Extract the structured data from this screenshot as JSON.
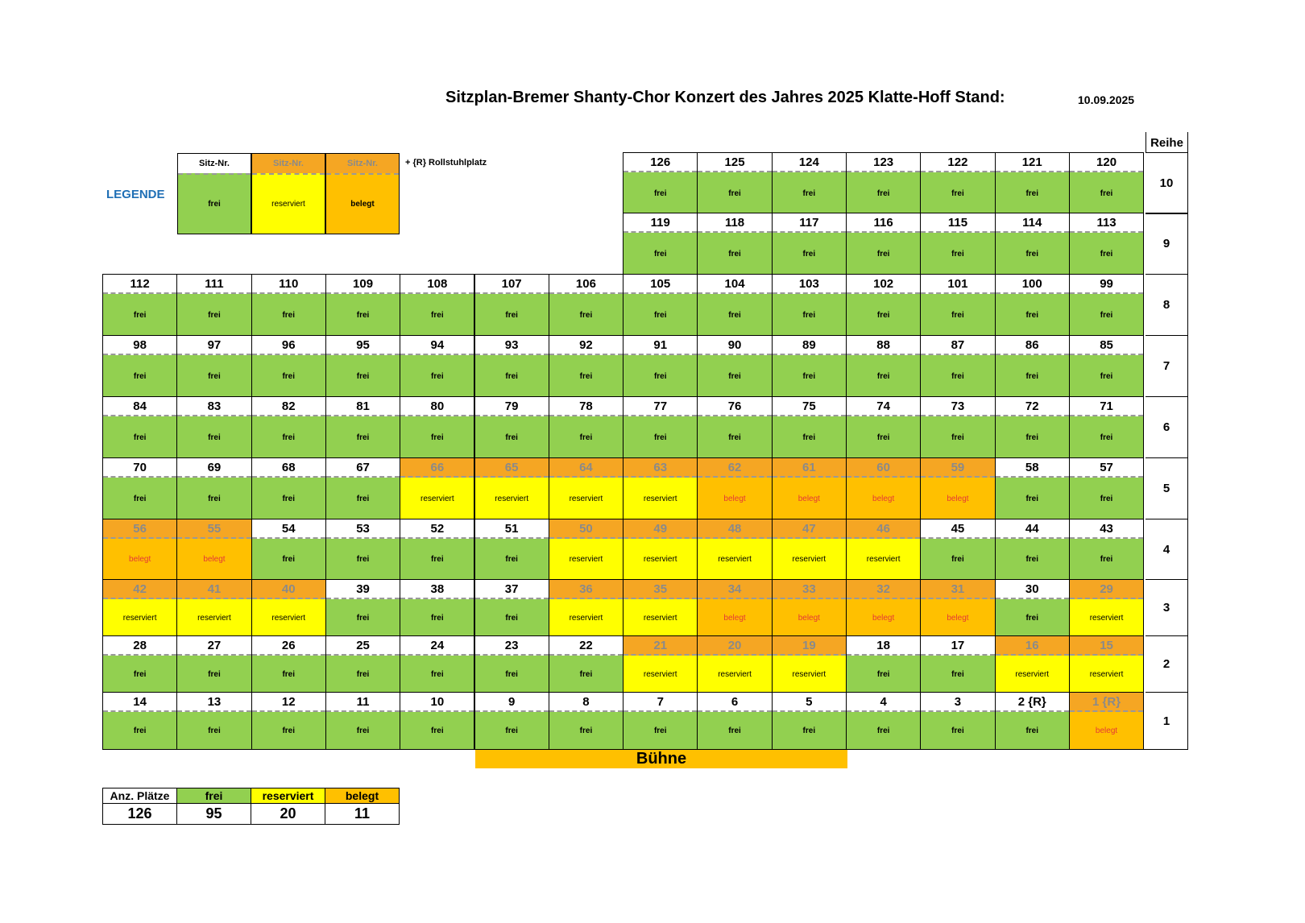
{
  "header": {
    "title": "Sitzplan-Bremer Shanty-Chor Konzert des Jahres  2025 Klatte-Hoff    Stand:",
    "date": "10.09.2025"
  },
  "legend": {
    "label": "LEGENDE",
    "items": [
      {
        "head": "Sitz-Nr.",
        "status": "frei",
        "label": "frei"
      },
      {
        "head": "Sitz-Nr.",
        "status": "reserviert",
        "label": "reserviert"
      },
      {
        "head": "Sitz-Nr.",
        "status": "belegt",
        "label": "belegt"
      }
    ],
    "note": "+ {R}   Rollstuhlplatz"
  },
  "row_header": "Reihe",
  "stage_label": "Bühne",
  "rows": [
    {
      "reihe": "10",
      "seats": [
        {
          "n": "126",
          "s": "frei"
        },
        {
          "n": "125",
          "s": "frei"
        },
        {
          "n": "124",
          "s": "frei"
        },
        {
          "n": "123",
          "s": "frei"
        },
        {
          "n": "122",
          "s": "frei"
        },
        {
          "n": "121",
          "s": "frei"
        },
        {
          "n": "120",
          "s": "frei"
        }
      ]
    },
    {
      "reihe": "9",
      "seats": [
        {
          "n": "119",
          "s": "frei"
        },
        {
          "n": "118",
          "s": "frei"
        },
        {
          "n": "117",
          "s": "frei"
        },
        {
          "n": "116",
          "s": "frei"
        },
        {
          "n": "115",
          "s": "frei"
        },
        {
          "n": "114",
          "s": "frei"
        },
        {
          "n": "113",
          "s": "frei"
        }
      ]
    },
    {
      "reihe": "8",
      "seats": [
        {
          "n": "112",
          "s": "frei"
        },
        {
          "n": "111",
          "s": "frei"
        },
        {
          "n": "110",
          "s": "frei"
        },
        {
          "n": "109",
          "s": "frei"
        },
        {
          "n": "108",
          "s": "frei"
        },
        {
          "n": "107",
          "s": "frei"
        },
        {
          "n": "106",
          "s": "frei"
        },
        {
          "n": "105",
          "s": "frei"
        },
        {
          "n": "104",
          "s": "frei"
        },
        {
          "n": "103",
          "s": "frei"
        },
        {
          "n": "102",
          "s": "frei"
        },
        {
          "n": "101",
          "s": "frei"
        },
        {
          "n": "100",
          "s": "frei"
        },
        {
          "n": "99",
          "s": "frei"
        }
      ]
    },
    {
      "reihe": "7",
      "seats": [
        {
          "n": "98",
          "s": "frei"
        },
        {
          "n": "97",
          "s": "frei"
        },
        {
          "n": "96",
          "s": "frei"
        },
        {
          "n": "95",
          "s": "frei"
        },
        {
          "n": "94",
          "s": "frei"
        },
        {
          "n": "93",
          "s": "frei"
        },
        {
          "n": "92",
          "s": "frei"
        },
        {
          "n": "91",
          "s": "frei"
        },
        {
          "n": "90",
          "s": "frei"
        },
        {
          "n": "89",
          "s": "frei"
        },
        {
          "n": "88",
          "s": "frei"
        },
        {
          "n": "87",
          "s": "frei"
        },
        {
          "n": "86",
          "s": "frei"
        },
        {
          "n": "85",
          "s": "frei"
        }
      ]
    },
    {
      "reihe": "6",
      "seats": [
        {
          "n": "84",
          "s": "frei"
        },
        {
          "n": "83",
          "s": "frei"
        },
        {
          "n": "82",
          "s": "frei"
        },
        {
          "n": "81",
          "s": "frei"
        },
        {
          "n": "80",
          "s": "frei"
        },
        {
          "n": "79",
          "s": "frei"
        },
        {
          "n": "78",
          "s": "frei"
        },
        {
          "n": "77",
          "s": "frei"
        },
        {
          "n": "76",
          "s": "frei"
        },
        {
          "n": "75",
          "s": "frei"
        },
        {
          "n": "74",
          "s": "frei"
        },
        {
          "n": "73",
          "s": "frei"
        },
        {
          "n": "72",
          "s": "frei"
        },
        {
          "n": "71",
          "s": "frei"
        }
      ]
    },
    {
      "reihe": "5",
      "seats": [
        {
          "n": "70",
          "s": "frei"
        },
        {
          "n": "69",
          "s": "frei"
        },
        {
          "n": "68",
          "s": "frei"
        },
        {
          "n": "67",
          "s": "frei"
        },
        {
          "n": "66",
          "s": "reserviert"
        },
        {
          "n": "65",
          "s": "reserviert"
        },
        {
          "n": "64",
          "s": "reserviert"
        },
        {
          "n": "63",
          "s": "reserviert"
        },
        {
          "n": "62",
          "s": "belegt"
        },
        {
          "n": "61",
          "s": "belegt"
        },
        {
          "n": "60",
          "s": "belegt"
        },
        {
          "n": "59",
          "s": "belegt"
        },
        {
          "n": "58",
          "s": "frei"
        },
        {
          "n": "57",
          "s": "frei"
        }
      ]
    },
    {
      "reihe": "4",
      "seats": [
        {
          "n": "56",
          "s": "belegt"
        },
        {
          "n": "55",
          "s": "belegt"
        },
        {
          "n": "54",
          "s": "frei"
        },
        {
          "n": "53",
          "s": "frei"
        },
        {
          "n": "52",
          "s": "frei"
        },
        {
          "n": "51",
          "s": "frei"
        },
        {
          "n": "50",
          "s": "reserviert"
        },
        {
          "n": "49",
          "s": "reserviert"
        },
        {
          "n": "48",
          "s": "reserviert"
        },
        {
          "n": "47",
          "s": "reserviert"
        },
        {
          "n": "46",
          "s": "reserviert"
        },
        {
          "n": "45",
          "s": "frei"
        },
        {
          "n": "44",
          "s": "frei"
        },
        {
          "n": "43",
          "s": "frei"
        }
      ]
    },
    {
      "reihe": "3",
      "seats": [
        {
          "n": "42",
          "s": "reserviert"
        },
        {
          "n": "41",
          "s": "reserviert"
        },
        {
          "n": "40",
          "s": "reserviert"
        },
        {
          "n": "39",
          "s": "frei"
        },
        {
          "n": "38",
          "s": "frei"
        },
        {
          "n": "37",
          "s": "frei"
        },
        {
          "n": "36",
          "s": "reserviert"
        },
        {
          "n": "35",
          "s": "reserviert"
        },
        {
          "n": "34",
          "s": "belegt"
        },
        {
          "n": "33",
          "s": "belegt"
        },
        {
          "n": "32",
          "s": "belegt"
        },
        {
          "n": "31",
          "s": "belegt"
        },
        {
          "n": "30",
          "s": "frei"
        },
        {
          "n": "29",
          "s": "reserviert"
        }
      ]
    },
    {
      "reihe": "2",
      "seats": [
        {
          "n": "28",
          "s": "frei"
        },
        {
          "n": "27",
          "s": "frei"
        },
        {
          "n": "26",
          "s": "frei"
        },
        {
          "n": "25",
          "s": "frei"
        },
        {
          "n": "24",
          "s": "frei"
        },
        {
          "n": "23",
          "s": "frei"
        },
        {
          "n": "22",
          "s": "frei"
        },
        {
          "n": "21",
          "s": "reserviert"
        },
        {
          "n": "20",
          "s": "reserviert"
        },
        {
          "n": "19",
          "s": "reserviert"
        },
        {
          "n": "18",
          "s": "frei"
        },
        {
          "n": "17",
          "s": "frei"
        },
        {
          "n": "16",
          "s": "reserviert"
        },
        {
          "n": "15",
          "s": "reserviert"
        }
      ]
    },
    {
      "reihe": "1",
      "seats": [
        {
          "n": "14",
          "s": "frei"
        },
        {
          "n": "13",
          "s": "frei"
        },
        {
          "n": "12",
          "s": "frei"
        },
        {
          "n": "11",
          "s": "frei"
        },
        {
          "n": "10",
          "s": "frei"
        },
        {
          "n": "9",
          "s": "frei"
        },
        {
          "n": "8",
          "s": "frei"
        },
        {
          "n": "7",
          "s": "frei"
        },
        {
          "n": "6",
          "s": "frei"
        },
        {
          "n": "5",
          "s": "frei"
        },
        {
          "n": "4",
          "s": "frei"
        },
        {
          "n": "3",
          "s": "frei"
        },
        {
          "n": "2 {R}",
          "s": "frei"
        },
        {
          "n": "1 {R}",
          "s": "belegt"
        }
      ]
    }
  ],
  "summary": {
    "headers": [
      "Anz. Plätze",
      "frei",
      "reserviert",
      "belegt"
    ],
    "values": [
      "126",
      "95",
      "20",
      "11"
    ]
  },
  "colors": {
    "frei": "#92d050",
    "reserviert": "#ffff00",
    "belegt": "#ffc000",
    "number_highlight": "#f5a623",
    "legend_label": "#1f6fb5"
  }
}
